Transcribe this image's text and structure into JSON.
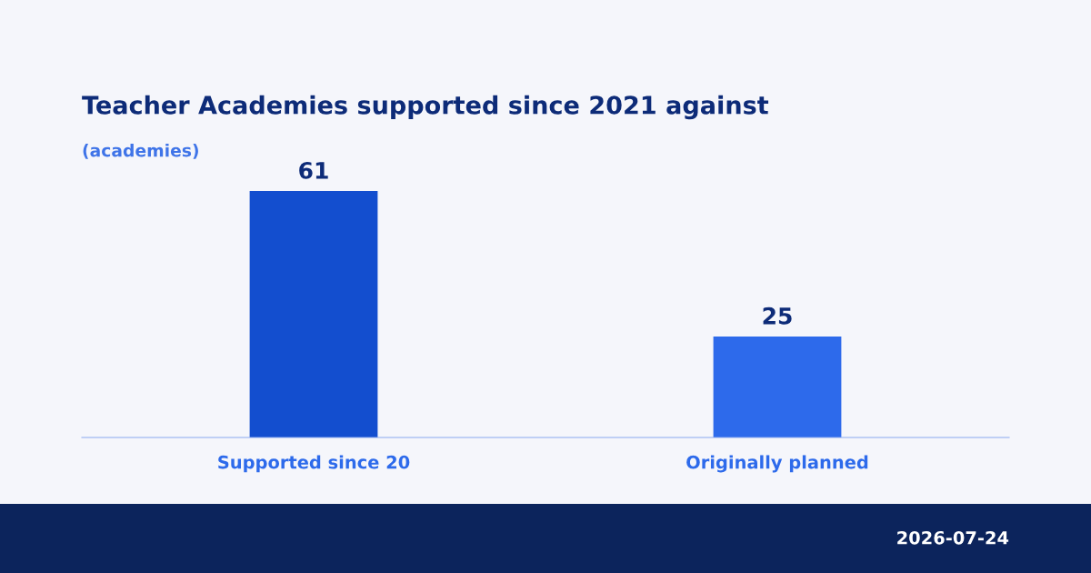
{
  "chart_data": {
    "type": "bar",
    "title": "Teacher Academies supported since 2021 against",
    "subtitle": "(academies)",
    "categories": [
      "Supported since 20",
      "Originally planned"
    ],
    "values": [
      61,
      25
    ],
    "colors": [
      "#134ecf",
      "#2d6aeb"
    ],
    "data_labels": true,
    "grid": false,
    "legend": false,
    "tick_labels": "x",
    "annotations": [
      "2026-07-24"
    ]
  }
}
